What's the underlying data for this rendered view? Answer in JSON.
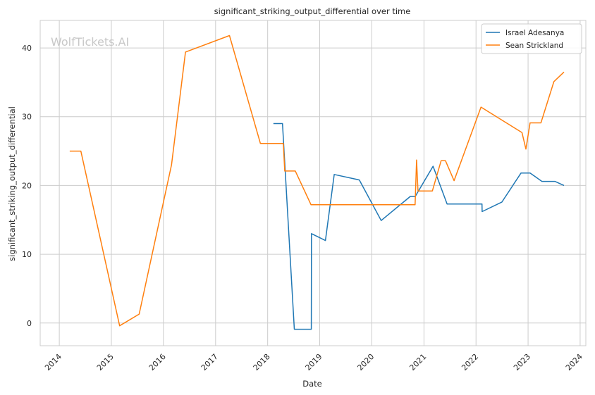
{
  "chart_data": {
    "type": "line",
    "title": "significant_striking_output_differential over time",
    "xlabel": "Date",
    "ylabel": "significant_striking_output_differential",
    "watermark": "WolfTickets.AI",
    "x_ticks": [
      "2014",
      "2015",
      "2016",
      "2017",
      "2018",
      "2019",
      "2020",
      "2021",
      "2022",
      "2023",
      "2024"
    ],
    "y_ticks": [
      0,
      10,
      20,
      30,
      40
    ],
    "xlim": [
      "2013-08-20",
      "2024-02-10"
    ],
    "ylim": [
      -3.3,
      44.0
    ],
    "grid": true,
    "legend_position": "top-right",
    "series": [
      {
        "name": "Israel Adesanya",
        "color": "#1f77b4",
        "points": [
          [
            "2018-02-10",
            29.0
          ],
          [
            "2018-04-15",
            29.0
          ],
          [
            "2018-07-07",
            -0.9
          ],
          [
            "2018-11-03",
            -0.9
          ],
          [
            "2018-11-04",
            13.0
          ],
          [
            "2019-02-10",
            12.0
          ],
          [
            "2019-04-13",
            21.6
          ],
          [
            "2019-10-06",
            20.8
          ],
          [
            "2020-03-07",
            14.9
          ],
          [
            "2020-09-27",
            18.4
          ],
          [
            "2020-11-01",
            18.4
          ],
          [
            "2021-03-06",
            22.8
          ],
          [
            "2021-06-12",
            17.3
          ],
          [
            "2022-02-12",
            17.3
          ],
          [
            "2022-02-13",
            16.2
          ],
          [
            "2022-07-02",
            17.6
          ],
          [
            "2022-11-12",
            21.8
          ],
          [
            "2023-01-15",
            21.8
          ],
          [
            "2023-04-08",
            20.6
          ],
          [
            "2023-07-08",
            20.6
          ],
          [
            "2023-09-10",
            20.0
          ]
        ]
      },
      {
        "name": "Sean Strickland",
        "color": "#ff7f0e",
        "points": [
          [
            "2014-03-15",
            25.0
          ],
          [
            "2014-06-01",
            25.0
          ],
          [
            "2015-02-28",
            -0.4
          ],
          [
            "2015-07-15",
            1.3
          ],
          [
            "2016-02-27",
            23.0
          ],
          [
            "2016-06-04",
            39.4
          ],
          [
            "2017-04-08",
            41.8
          ],
          [
            "2017-11-11",
            26.1
          ],
          [
            "2018-04-21",
            26.1
          ],
          [
            "2018-05-01",
            22.1
          ],
          [
            "2018-07-14",
            22.1
          ],
          [
            "2018-11-01",
            17.2
          ],
          [
            "2020-10-31",
            17.2
          ],
          [
            "2020-11-10",
            23.7
          ],
          [
            "2020-11-20",
            19.2
          ],
          [
            "2021-03-01",
            19.2
          ],
          [
            "2021-05-01",
            23.6
          ],
          [
            "2021-06-01",
            23.6
          ],
          [
            "2021-07-31",
            20.7
          ],
          [
            "2022-02-05",
            31.4
          ],
          [
            "2022-11-19",
            27.7
          ],
          [
            "2022-12-17",
            25.3
          ],
          [
            "2023-01-15",
            29.1
          ],
          [
            "2023-04-01",
            29.1
          ],
          [
            "2023-07-01",
            35.1
          ],
          [
            "2023-09-10",
            36.5
          ]
        ]
      }
    ]
  }
}
